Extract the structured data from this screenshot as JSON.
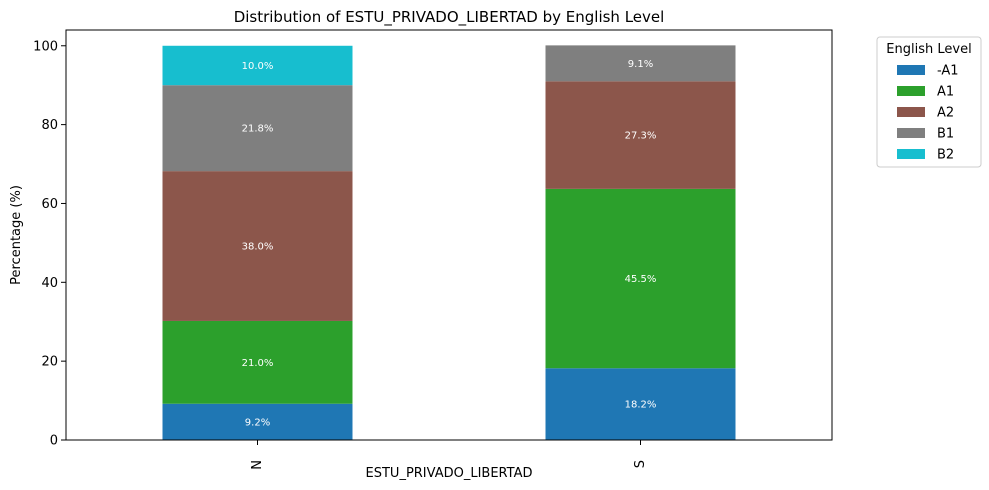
{
  "chart_data": {
    "type": "bar",
    "stacked": true,
    "title": "Distribution of ESTU_PRIVADO_LIBERTAD by English Level",
    "xlabel": "ESTU_PRIVADO_LIBERTAD",
    "ylabel": "Percentage (%)",
    "categories": [
      "N",
      "S"
    ],
    "ylim": [
      0,
      104
    ],
    "yticks": [
      0,
      20,
      40,
      60,
      80,
      100
    ],
    "grid": false,
    "legend": {
      "title": "English Level",
      "placement": "outside top-right"
    },
    "series": [
      {
        "name": "-A1",
        "color": "#1f77b4",
        "values": [
          9.2,
          18.2
        ],
        "labels": [
          "9.2%",
          "18.2%"
        ]
      },
      {
        "name": "A1",
        "color": "#2ca02c",
        "values": [
          21.0,
          45.5
        ],
        "labels": [
          "21.0%",
          "45.5%"
        ]
      },
      {
        "name": "A2",
        "color": "#8c564b",
        "values": [
          38.0,
          27.3
        ],
        "labels": [
          "38.0%",
          "27.3%"
        ]
      },
      {
        "name": "B1",
        "color": "#7f7f7f",
        "values": [
          21.8,
          9.1
        ],
        "labels": [
          "21.8%",
          "9.1%"
        ]
      },
      {
        "name": "B2",
        "color": "#17becf",
        "values": [
          10.0,
          0
        ],
        "labels": [
          "10.0%",
          ""
        ]
      }
    ]
  }
}
